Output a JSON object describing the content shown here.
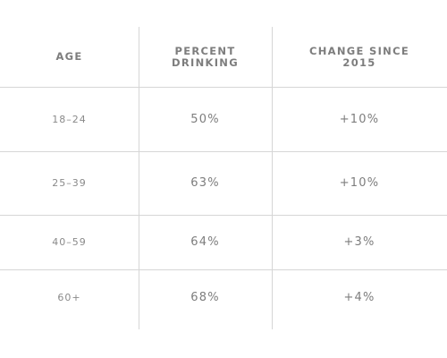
{
  "table": {
    "headers": {
      "age": [
        "AGE"
      ],
      "percent": [
        "PERCENT",
        "DRINKING"
      ],
      "change": [
        "CHANGE SINCE",
        "2015"
      ]
    },
    "rows": [
      {
        "age": "18–24",
        "percent": "50%",
        "change": "+10%"
      },
      {
        "age": "25–39",
        "percent": "63%",
        "change": "+10%"
      },
      {
        "age": "40–59",
        "percent": "64%",
        "change": "+3%"
      },
      {
        "age": "60+",
        "percent": "68%",
        "change": "+4%"
      }
    ]
  }
}
